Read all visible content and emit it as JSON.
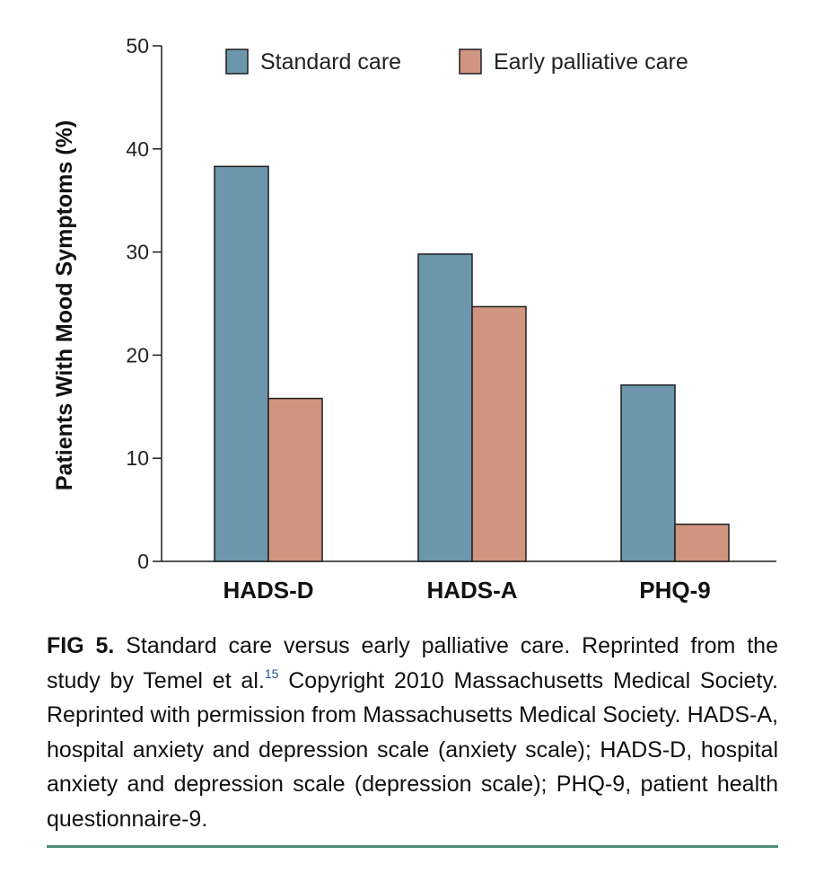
{
  "chart_data": {
    "type": "bar",
    "categories": [
      "HADS-D",
      "HADS-A",
      "PHQ-9"
    ],
    "series": [
      {
        "name": "Standard care",
        "values": [
          38.3,
          29.8,
          17.1
        ]
      },
      {
        "name": "Early palliative care",
        "values": [
          15.8,
          24.7,
          3.6
        ]
      }
    ],
    "ylabel": "Patients With Mood Symptoms (%)",
    "xlabel": "",
    "ylim": [
      0,
      50
    ],
    "yticks": [
      "0",
      "10",
      "20",
      "30",
      "40",
      "50"
    ],
    "legend_position": "top",
    "grid": false,
    "colors": {
      "Standard care": "#6b96ab",
      "Early palliative care": "#cf9580",
      "outline": "#1f1f1f"
    }
  },
  "caption": {
    "label": "FIG 5.",
    "text_part1": "Standard care versus early palliative care. Reprinted from the study by Temel et al.",
    "ref": "15",
    "text_part2": "Copyright 2010 Massachusetts Medical Society. Reprinted with permission from Massachusetts Medical Society. HADS-A, hospital anxiety and depression scale (anxiety scale); HADS-D, hospital anxiety and depression scale (depression scale); PHQ-9, patient health questionnaire-9."
  }
}
